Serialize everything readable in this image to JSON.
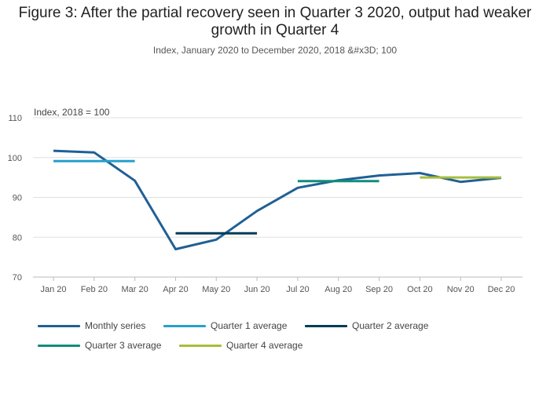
{
  "title": "Figure 3: After the partial recovery seen in Quarter 3 2020, output had weaker growth in Quarter 4",
  "subtitle": "Index, January 2020 to December 2020, 2018 &#x3D; 100",
  "chart_data": {
    "type": "line",
    "title": "Figure 3: After the partial recovery seen in Quarter 3 2020, output had weaker growth in Quarter 4",
    "subtitle": "Index, January 2020 to December 2020, 2018 &#x3D; 100",
    "ylabel": "Index, 2018 = 100",
    "xlabel": "",
    "categories": [
      "Jan 20",
      "Feb 20",
      "Mar 20",
      "Apr 20",
      "May 20",
      "Jun 20",
      "Jul 20",
      "Aug 20",
      "Sep 20",
      "Oct 20",
      "Nov 20",
      "Dec 20"
    ],
    "ylim": [
      70,
      110
    ],
    "yticks": [
      70,
      80,
      90,
      100,
      110
    ],
    "grid": true,
    "legend_position": "bottom",
    "series": [
      {
        "name": "Monthly series",
        "color": "#206095",
        "values": [
          101.7,
          101.3,
          94.2,
          77.0,
          79.4,
          86.6,
          92.4,
          94.3,
          95.5,
          96.1,
          93.9,
          94.9
        ]
      },
      {
        "name": "Quarter 1 average",
        "color": "#27a0cc",
        "segment": [
          0,
          2
        ],
        "values": [
          99.1,
          99.1,
          99.1,
          null,
          null,
          null,
          null,
          null,
          null,
          null,
          null,
          null
        ]
      },
      {
        "name": "Quarter 2 average",
        "color": "#003c57",
        "segment": [
          3,
          5
        ],
        "values": [
          null,
          null,
          null,
          81.0,
          81.0,
          81.0,
          null,
          null,
          null,
          null,
          null,
          null
        ]
      },
      {
        "name": "Quarter 3 average",
        "color": "#118c7b",
        "segment": [
          6,
          8
        ],
        "values": [
          null,
          null,
          null,
          null,
          null,
          null,
          94.1,
          94.1,
          94.1,
          null,
          null,
          null
        ]
      },
      {
        "name": "Quarter 4 average",
        "color": "#a8bd3a",
        "segment": [
          9,
          11
        ],
        "values": [
          null,
          null,
          null,
          null,
          null,
          null,
          null,
          null,
          null,
          95.0,
          95.0,
          95.0
        ]
      }
    ]
  }
}
